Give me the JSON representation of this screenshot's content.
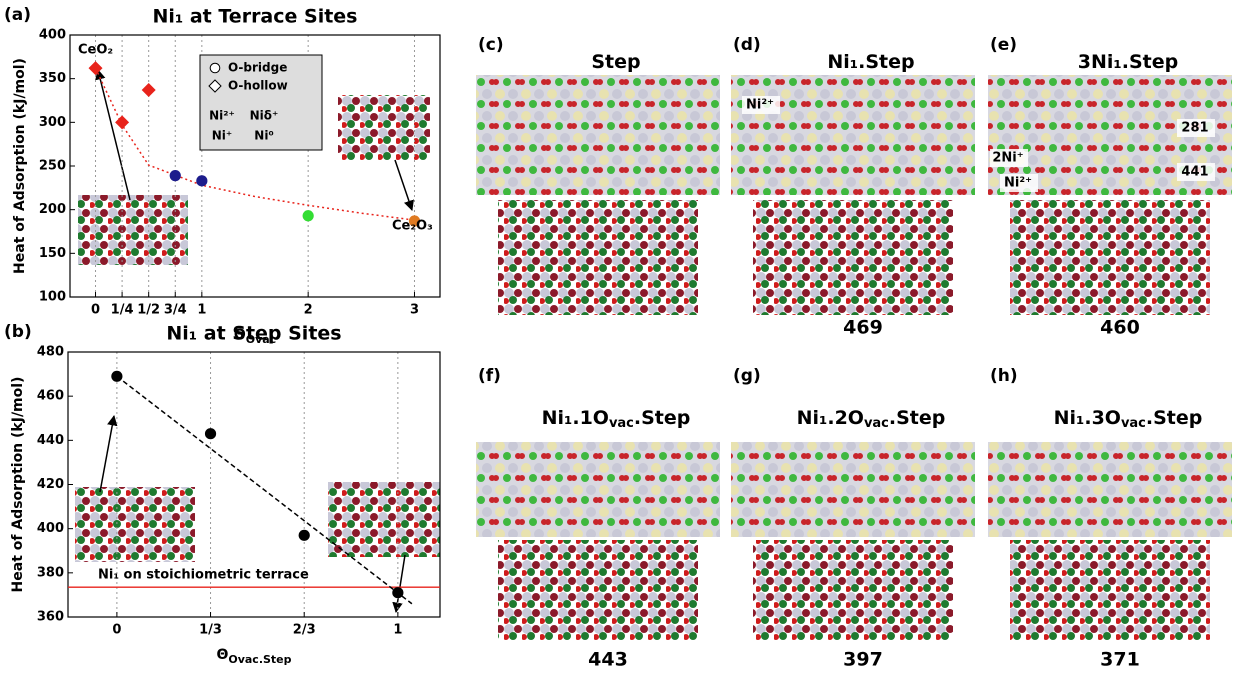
{
  "chart_data": [
    {
      "type": "scatter",
      "panel_label": "(a)",
      "title": "Ni₁ at Terrace Sites",
      "ylabel": "Heat of Adsorption (kJ/mol)",
      "xlabel": "Θ",
      "xlabel_sub": "Ovac",
      "xlim": [
        -0.24,
        3.24
      ],
      "ylim": [
        100,
        400
      ],
      "xticks": [
        0,
        {
          "value": 0.25,
          "label": "1/4"
        },
        {
          "value": 0.5,
          "label": "1/2"
        },
        {
          "value": 0.75,
          "label": "3/4"
        },
        1,
        2,
        3
      ],
      "yticks": [
        100,
        150,
        200,
        250,
        300,
        350,
        400
      ],
      "grid": "x",
      "series": [
        {
          "name": "Ni²⁺",
          "color": "#e8231b",
          "marker": "diamond",
          "x": [
            0,
            0.25,
            0.5
          ],
          "values": [
            362,
            300,
            337
          ]
        },
        {
          "name": "Niδ⁺",
          "color": "#33dd33",
          "marker": "circle",
          "x": [
            2
          ],
          "values": [
            193
          ]
        },
        {
          "name": "Ni⁺",
          "color": "#1c1c8c",
          "marker": "circle",
          "x": [
            0.75,
            1
          ],
          "values": [
            239,
            233
          ]
        },
        {
          "name": "Ni⁰",
          "color": "#e07b22",
          "marker": "circle",
          "x": [
            3
          ],
          "values": [
            187
          ]
        }
      ],
      "curve": {
        "color": "#e8231b",
        "style": "dotted",
        "x": [
          0,
          0.25,
          0.5,
          1,
          1.5,
          2,
          2.5,
          3
        ],
        "values": [
          362,
          297,
          251,
          228,
          215,
          205,
          196,
          188
        ]
      },
      "marker_legend": [
        {
          "marker": "circle",
          "label": "O-bridge"
        },
        {
          "marker": "diamond",
          "label": "O-hollow"
        }
      ],
      "annotations": [
        "CeO₂",
        "Ce₂O₃"
      ]
    },
    {
      "type": "scatter",
      "panel_label": "(b)",
      "title": "Ni₁ at Step Sites",
      "ylabel": "Heat of Adsorption (kJ/mol)",
      "xlabel": "Θ",
      "xlabel_sub": "Ovac.Step",
      "xlim": [
        -0.174,
        1.15
      ],
      "ylim": [
        360,
        480
      ],
      "xticks": [
        0,
        {
          "value": 0.3333,
          "label": "1/3"
        },
        {
          "value": 0.6667,
          "label": "2/3"
        },
        1
      ],
      "yticks": [
        360,
        380,
        400,
        420,
        440,
        460,
        480
      ],
      "grid": "x",
      "series": [
        {
          "color": "#000000",
          "marker": "circle",
          "x": [
            0,
            0.3333,
            0.6667,
            1
          ],
          "values": [
            469,
            443,
            397,
            371
          ]
        }
      ],
      "curve": {
        "color": "#000000",
        "style": "dashed",
        "x": [
          0,
          1.05
        ],
        "values": [
          469,
          366
        ]
      },
      "reference": {
        "value": 373.5,
        "label": "Ni₁ on stoichiometric terrace",
        "color": "#e8231b"
      }
    }
  ],
  "panels": [
    {
      "label": "(c)",
      "title": [
        "Step"
      ]
    },
    {
      "label": "(d)",
      "title": [
        "Ni₁.Step"
      ],
      "energy": 469,
      "annotations": [
        "Ni²⁺"
      ]
    },
    {
      "label": "(e)",
      "title": [
        "3Ni₁.Step"
      ],
      "energy": 460,
      "annotations": [
        "281",
        "441",
        "2Ni⁺",
        "Ni²⁺"
      ]
    },
    {
      "label": "(f)",
      "title": [
        "Ni₁.1O",
        "vac",
        ".Step"
      ],
      "energy": 443
    },
    {
      "label": "(g)",
      "title": [
        "Ni₁.2O",
        "vac",
        ".Step"
      ],
      "energy": 397
    },
    {
      "label": "(h)",
      "title": [
        "Ni₁.3O",
        "vac",
        ".Step"
      ],
      "energy": 371
    }
  ]
}
